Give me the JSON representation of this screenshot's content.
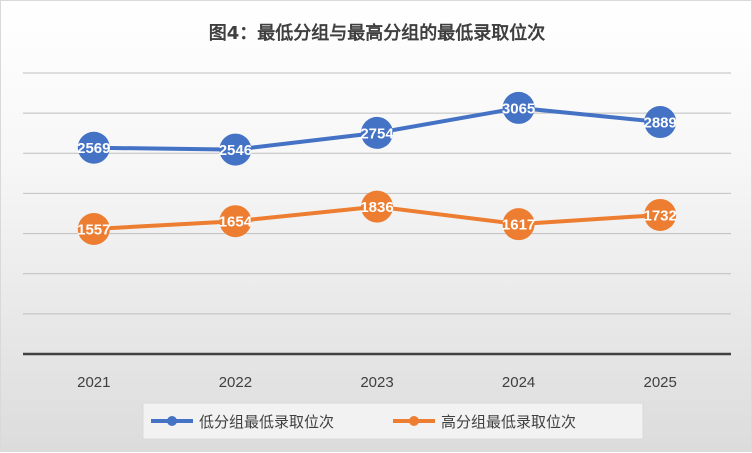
{
  "chart_data": {
    "type": "line",
    "title": "图4：最低分组与最高分组的最低录取位次",
    "categories": [
      "2021",
      "2022",
      "2023",
      "2024",
      "2025"
    ],
    "series": [
      {
        "name": "低分组最低录取位次",
        "values": [
          2569,
          2546,
          2754,
          3065,
          2889
        ],
        "color": "#4472c4"
      },
      {
        "name": "高分组最低录取位次",
        "values": [
          1557,
          1654,
          1836,
          1617,
          1732
        ],
        "color": "#ed7d31"
      }
    ],
    "ylim": [
      0,
      3500
    ],
    "grid": true,
    "legend": "bottom",
    "data_labels": true
  }
}
